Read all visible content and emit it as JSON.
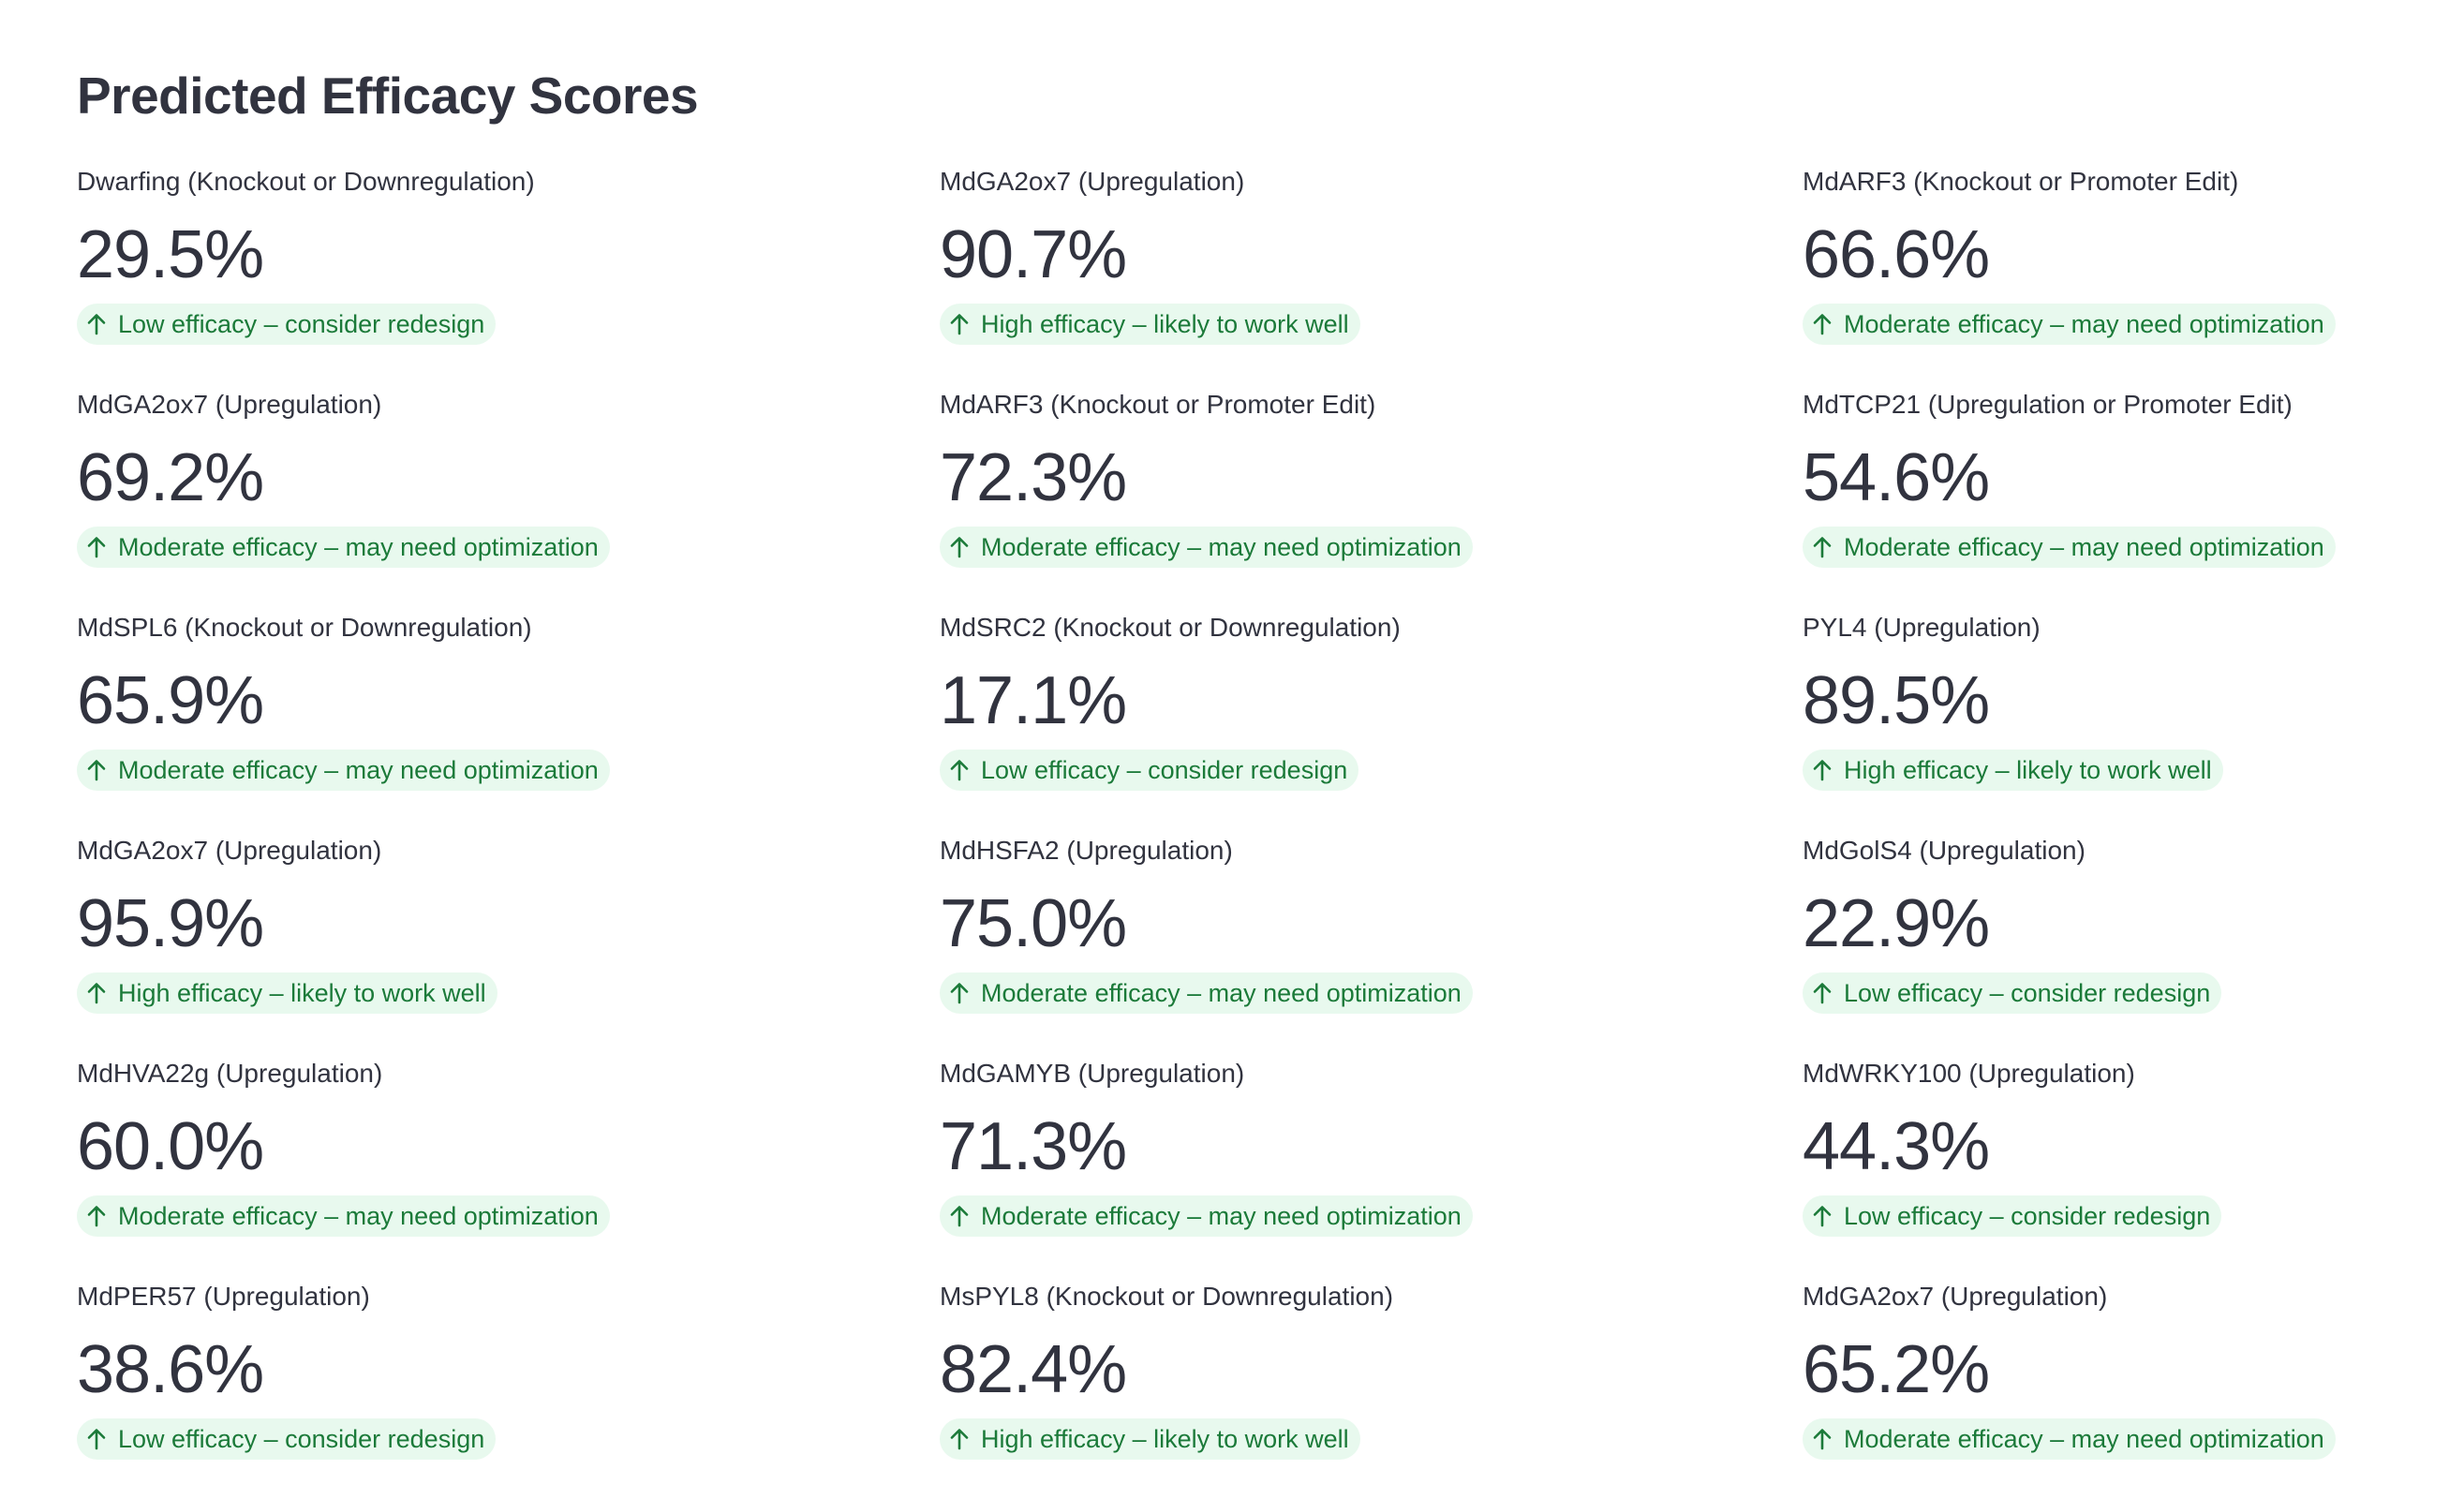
{
  "header": {
    "title": "Predicted Efficacy Scores"
  },
  "colors": {
    "text": "#31333f",
    "delta_text": "#1b7a39",
    "delta_background": "rgba(33, 195, 84, 0.10)"
  },
  "delta_icon": "arrow-up-icon",
  "metrics": [
    {
      "label": "Dwarfing (Knockout or Downregulation)",
      "value": "29.5%",
      "delta": "Low efficacy – consider redesign"
    },
    {
      "label": "MdGA2ox7 (Upregulation)",
      "value": "90.7%",
      "delta": "High efficacy – likely to work well"
    },
    {
      "label": "MdARF3 (Knockout or Promoter Edit)",
      "value": "66.6%",
      "delta": "Moderate efficacy – may need optimization"
    },
    {
      "label": "MdGA2ox7 (Upregulation)",
      "value": "69.2%",
      "delta": "Moderate efficacy – may need optimization"
    },
    {
      "label": "MdARF3 (Knockout or Promoter Edit)",
      "value": "72.3%",
      "delta": "Moderate efficacy – may need optimization"
    },
    {
      "label": "MdTCP21 (Upregulation or Promoter Edit)",
      "value": "54.6%",
      "delta": "Moderate efficacy – may need optimization"
    },
    {
      "label": "MdSPL6 (Knockout or Downregulation)",
      "value": "65.9%",
      "delta": "Moderate efficacy – may need optimization"
    },
    {
      "label": "MdSRC2 (Knockout or Downregulation)",
      "value": "17.1%",
      "delta": "Low efficacy – consider redesign"
    },
    {
      "label": "PYL4 (Upregulation)",
      "value": "89.5%",
      "delta": "High efficacy – likely to work well"
    },
    {
      "label": "MdGA2ox7 (Upregulation)",
      "value": "95.9%",
      "delta": "High efficacy – likely to work well"
    },
    {
      "label": "MdHSFA2 (Upregulation)",
      "value": "75.0%",
      "delta": "Moderate efficacy – may need optimization"
    },
    {
      "label": "MdGolS4 (Upregulation)",
      "value": "22.9%",
      "delta": "Low efficacy – consider redesign"
    },
    {
      "label": "MdHVA22g (Upregulation)",
      "value": "60.0%",
      "delta": "Moderate efficacy – may need optimization"
    },
    {
      "label": "MdGAMYB (Upregulation)",
      "value": "71.3%",
      "delta": "Moderate efficacy – may need optimization"
    },
    {
      "label": "MdWRKY100 (Upregulation)",
      "value": "44.3%",
      "delta": "Low efficacy – consider redesign"
    },
    {
      "label": "MdPER57 (Upregulation)",
      "value": "38.6%",
      "delta": "Low efficacy – consider redesign"
    },
    {
      "label": "MsPYL8 (Knockout or Downregulation)",
      "value": "82.4%",
      "delta": "High efficacy – likely to work well"
    },
    {
      "label": "MdGA2ox7 (Upregulation)",
      "value": "65.2%",
      "delta": "Moderate efficacy – may need optimization"
    }
  ]
}
